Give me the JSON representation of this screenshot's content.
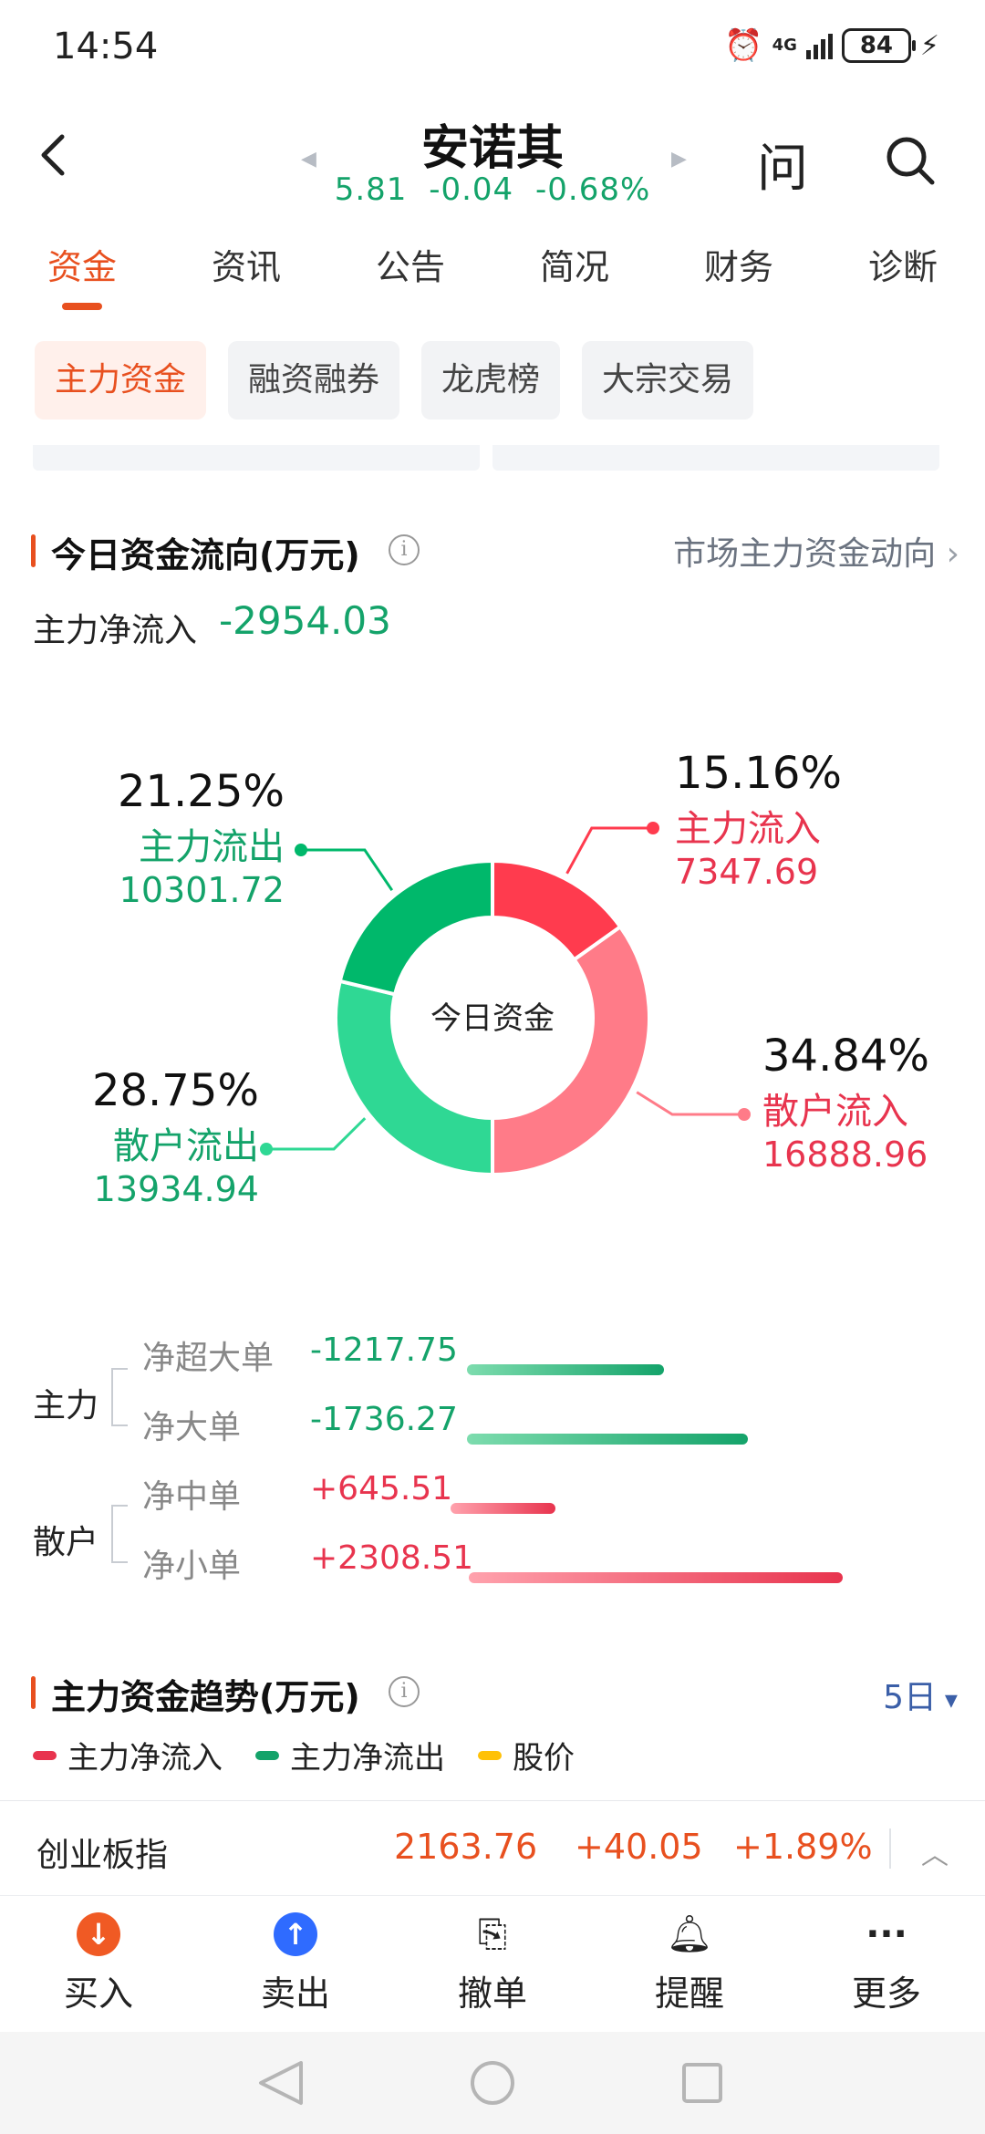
{
  "status_bar": {
    "time": "14:54",
    "network": "4G",
    "battery": "84"
  },
  "header": {
    "stock_name": "安诺其",
    "price": "5.81",
    "change": "-0.04",
    "change_pct": "-0.68%",
    "ask_label": "问"
  },
  "tabs": [
    "资金",
    "资讯",
    "公告",
    "简况",
    "财务",
    "诊断"
  ],
  "active_tab": "资金",
  "subtabs": [
    "主力资金",
    "融资融券",
    "龙虎榜",
    "大宗交易"
  ],
  "active_subtab": "主力资金",
  "today_flow": {
    "title": "今日资金流向(万元)",
    "market_link": "市场主力资金动向",
    "net_inflow_label": "主力净流入",
    "net_inflow_value": "-2954.03"
  },
  "chart_data": {
    "type": "pie",
    "center_label": "今日资金",
    "slices": [
      {
        "name": "主力流入",
        "pct": 15.16,
        "pct_label": "15.16%",
        "amount": "7347.69",
        "color": "#ff3b4e"
      },
      {
        "name": "散户流入",
        "pct": 34.84,
        "pct_label": "34.84%",
        "amount": "16888.96",
        "color": "#ff7b88"
      },
      {
        "name": "散户流出",
        "pct": 28.75,
        "pct_label": "28.75%",
        "amount": "13934.94",
        "color": "#2fd894"
      },
      {
        "name": "主力流出",
        "pct": 21.25,
        "pct_label": "21.25%",
        "amount": "10301.72",
        "color": "#00b86b"
      }
    ]
  },
  "flow_rows": {
    "main_label": "主力",
    "retail_label": "散户",
    "rows": [
      {
        "label": "净超大单",
        "value": "-1217.75",
        "amount": -1217.75
      },
      {
        "label": "净大单",
        "value": "-1736.27",
        "amount": -1736.27
      },
      {
        "label": "净中单",
        "value": "+645.51",
        "amount": 645.51
      },
      {
        "label": "净小单",
        "value": "+2308.51",
        "amount": 2308.51
      }
    ]
  },
  "trend": {
    "title": "主力资金趋势(万元)",
    "period": "5日",
    "legend": [
      "主力净流入",
      "主力净流出",
      "股价"
    ],
    "legend_colors": [
      "#e8344e",
      "#14a36a",
      "#ffc107"
    ]
  },
  "index_bar": {
    "name": "创业板指",
    "value": "2163.76",
    "change": "+40.05",
    "change_pct": "+1.89%"
  },
  "actions": [
    "买入",
    "卖出",
    "撤单",
    "提醒",
    "更多"
  ],
  "colors": {
    "accent": "#e8501f",
    "down": "#14a36a",
    "up": "#e8344e"
  }
}
